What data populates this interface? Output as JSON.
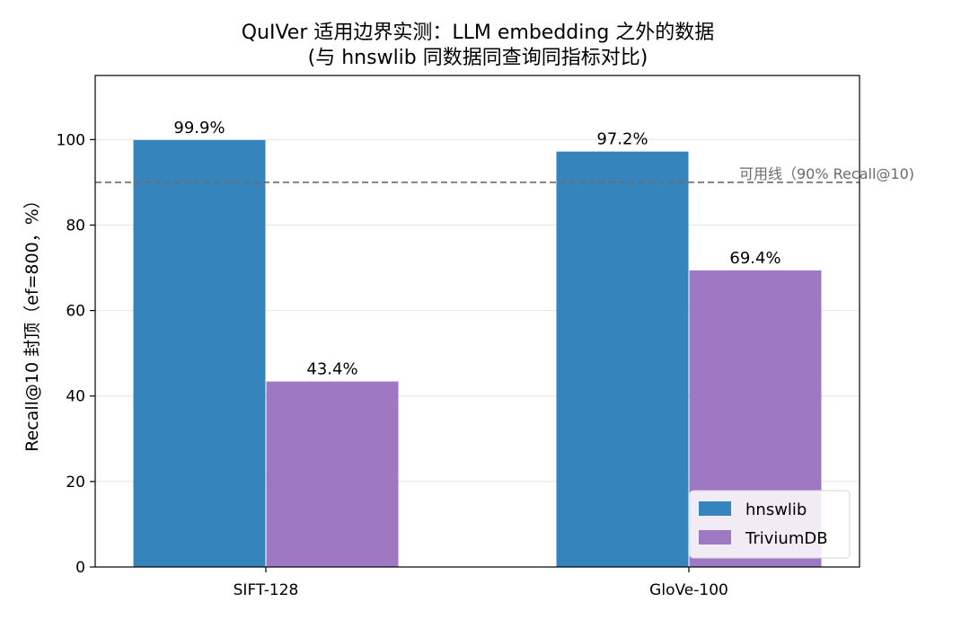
{
  "chart_data": {
    "type": "bar",
    "title": "QuIVer 适用边界实测：LLM embedding 之外的数据",
    "subtitle": "(与 hnswlib 同数据同查询同指标对比)",
    "ylabel": "Recall@10 封顶（ef=800，%）",
    "xlabel": "",
    "categories": [
      "SIFT-128",
      "GloVe-100"
    ],
    "series": [
      {
        "name": "hnswlib",
        "values": [
          99.9,
          97.2
        ],
        "labels": [
          "99.9%",
          "97.2%"
        ],
        "color": "#3584bb"
      },
      {
        "name": "TriviumDB",
        "values": [
          43.4,
          69.4
        ],
        "labels": [
          "43.4%",
          "69.4%"
        ],
        "color": "#9e78c3"
      }
    ],
    "ylim": [
      0,
      115
    ],
    "yticks": [
      0,
      20,
      40,
      60,
      80,
      100
    ],
    "grid": "horizontal",
    "reference_line": {
      "value": 90,
      "label": "可用线（90% Recall@10)",
      "color": "#6b6b6b",
      "style": "dashed"
    },
    "legend_position": "lower-right"
  }
}
